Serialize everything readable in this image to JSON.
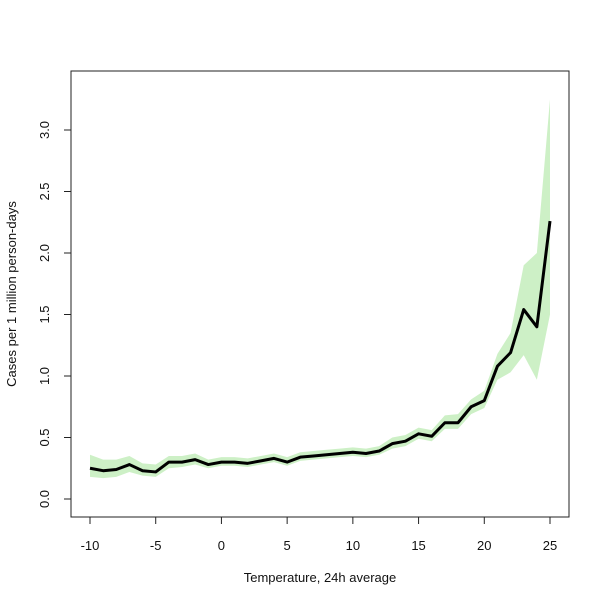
{
  "chart_data": {
    "type": "line",
    "title": "",
    "xlabel": "Temperature, 24h average",
    "ylabel": "Cases per 1 million person-days",
    "xlim": [
      -11.5,
      26.5
    ],
    "ylim": [
      -0.1,
      3.3
    ],
    "xticks": [
      -10,
      -5,
      0,
      5,
      10,
      15,
      20,
      25
    ],
    "xtick_labels": [
      "-10",
      "-5",
      "0",
      "5",
      "10",
      "15",
      "20",
      "25"
    ],
    "yticks": [
      0,
      0.5,
      1,
      1.5,
      2,
      2.5,
      3
    ],
    "ytick_labels": [
      "0.0",
      "0.5",
      "1.0",
      "1.5",
      "2.0",
      "2.5",
      "3.0"
    ],
    "grid": false,
    "line_color": "#000000",
    "band_color": "#cdf0c6",
    "x": [
      -10,
      -9,
      -8,
      -7,
      -6,
      -5,
      -4,
      -3,
      -2,
      -1,
      0,
      1,
      2,
      3,
      4,
      5,
      6,
      7,
      8,
      9,
      10,
      11,
      12,
      13,
      14,
      15,
      16,
      17,
      18,
      19,
      20,
      21,
      22,
      23,
      24,
      25
    ],
    "series": [
      {
        "name": "estimate",
        "values": [
          0.25,
          0.23,
          0.24,
          0.28,
          0.23,
          0.22,
          0.3,
          0.3,
          0.32,
          0.28,
          0.3,
          0.3,
          0.29,
          0.31,
          0.33,
          0.3,
          0.34,
          0.35,
          0.36,
          0.37,
          0.38,
          0.37,
          0.39,
          0.45,
          0.47,
          0.53,
          0.51,
          0.62,
          0.62,
          0.75,
          0.8,
          1.08,
          1.19,
          1.54,
          1.4,
          2.26
        ]
      },
      {
        "name": "lower",
        "values": [
          0.18,
          0.17,
          0.18,
          0.22,
          0.19,
          0.18,
          0.25,
          0.26,
          0.28,
          0.25,
          0.27,
          0.27,
          0.26,
          0.28,
          0.3,
          0.27,
          0.31,
          0.32,
          0.33,
          0.34,
          0.35,
          0.34,
          0.36,
          0.41,
          0.43,
          0.49,
          0.47,
          0.57,
          0.57,
          0.69,
          0.74,
          0.97,
          1.03,
          1.17,
          0.97,
          1.5
        ]
      },
      {
        "name": "upper",
        "values": [
          0.36,
          0.32,
          0.32,
          0.35,
          0.29,
          0.28,
          0.35,
          0.35,
          0.37,
          0.32,
          0.34,
          0.34,
          0.33,
          0.35,
          0.37,
          0.34,
          0.38,
          0.39,
          0.4,
          0.41,
          0.42,
          0.41,
          0.43,
          0.5,
          0.52,
          0.58,
          0.56,
          0.68,
          0.69,
          0.81,
          0.88,
          1.18,
          1.35,
          1.9,
          2.0,
          3.25
        ]
      }
    ]
  }
}
